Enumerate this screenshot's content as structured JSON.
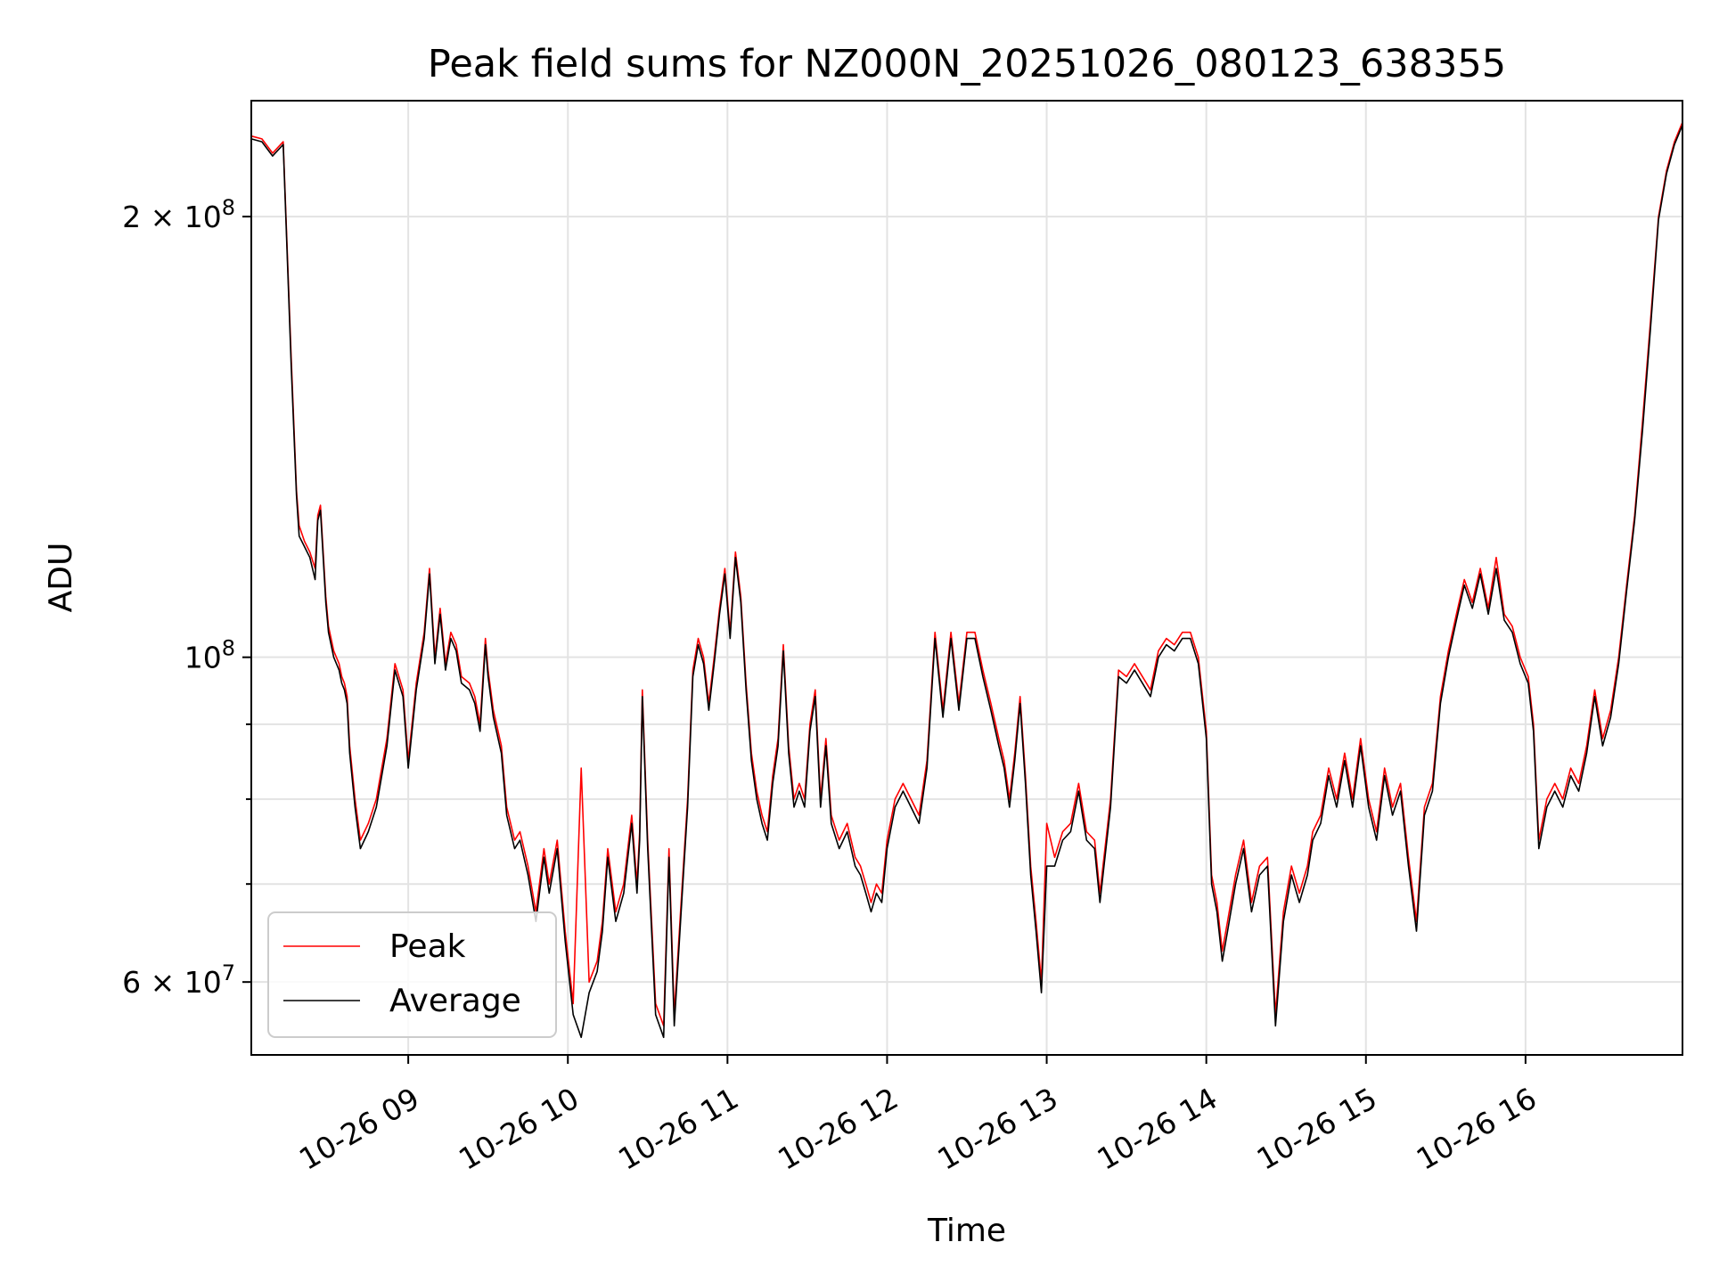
{
  "chart_data": {
    "type": "line",
    "title": "Peak field sums for NZ000N_20251026_080123_638355",
    "xlabel": "Time",
    "ylabel": "ADU",
    "yscale": "log",
    "ylim": [
      53500000,
      240000000
    ],
    "xlim": [
      "10-26 08:01",
      "10-26 16:59"
    ],
    "x_ticks": [
      "10-26 09",
      "10-26 10",
      "10-26 11",
      "10-26 12",
      "10-26 13",
      "10-26 14",
      "10-26 15",
      "10-26 16"
    ],
    "y_major_ticks": [
      {
        "value": 60000000,
        "mantissa": "6",
        "exponent": "7"
      },
      {
        "value": 100000000,
        "mantissa": "",
        "exponent": "8"
      },
      {
        "value": 200000000,
        "mantissa": "2",
        "exponent": "8"
      }
    ],
    "y_minor_ticks": [
      70000000,
      80000000,
      90000000
    ],
    "grid": true,
    "legend": {
      "position": "bottom-left",
      "entries": [
        "Peak",
        "Average"
      ]
    },
    "x": [
      "10-26 08:01",
      "10-26 08:05",
      "10-26 08:09",
      "10-26 08:13",
      "10-26 08:16",
      "10-26 08:18",
      "10-26 08:19",
      "10-26 08:21",
      "10-26 08:23",
      "10-26 08:25",
      "10-26 08:26",
      "10-26 08:27",
      "10-26 08:29",
      "10-26 08:30",
      "10-26 08:32",
      "10-26 08:34",
      "10-26 08:35",
      "10-26 08:36",
      "10-26 08:37",
      "10-26 08:38",
      "10-26 08:40",
      "10-26 08:42",
      "10-26 08:45",
      "10-26 08:48",
      "10-26 08:52",
      "10-26 08:55",
      "10-26 08:58",
      "10-26 09:00",
      "10-26 09:03",
      "10-26 09:06",
      "10-26 09:08",
      "10-26 09:10",
      "10-26 09:12",
      "10-26 09:14",
      "10-26 09:16",
      "10-26 09:18",
      "10-26 09:20",
      "10-26 09:23",
      "10-26 09:25",
      "10-26 09:27",
      "10-26 09:29",
      "10-26 09:30",
      "10-26 09:32",
      "10-26 09:35",
      "10-26 09:37",
      "10-26 09:40",
      "10-26 09:42",
      "10-26 09:45",
      "10-26 09:48",
      "10-26 09:51",
      "10-26 09:53",
      "10-26 09:56",
      "10-26 09:59",
      "10-26 10:02",
      "10-26 10:05",
      "10-26 10:08",
      "10-26 10:11",
      "10-26 10:13",
      "10-26 10:15",
      "10-26 10:18",
      "10-26 10:21",
      "10-26 10:24",
      "10-26 10:26",
      "10-26 10:27",
      "10-26 10:28",
      "10-26 10:30",
      "10-26 10:33",
      "10-26 10:36",
      "10-26 10:38",
      "10-26 10:40",
      "10-26 10:43",
      "10-26 10:45",
      "10-26 10:47",
      "10-26 10:49",
      "10-26 10:51",
      "10-26 10:53",
      "10-26 10:55",
      "10-26 10:57",
      "10-26 10:59",
      "10-26 11:01",
      "10-26 11:03",
      "10-26 11:05",
      "10-26 11:07",
      "10-26 11:09",
      "10-26 11:11",
      "10-26 11:13",
      "10-26 11:15",
      "10-26 11:17",
      "10-26 11:19",
      "10-26 11:21",
      "10-26 11:23",
      "10-26 11:25",
      "10-26 11:27",
      "10-26 11:29",
      "10-26 11:31",
      "10-26 11:33",
      "10-26 11:35",
      "10-26 11:37",
      "10-26 11:39",
      "10-26 11:42",
      "10-26 11:45",
      "10-26 11:48",
      "10-26 11:50",
      "10-26 11:52",
      "10-26 11:54",
      "10-26 11:56",
      "10-26 11:58",
      "10-26 12:00",
      "10-26 12:03",
      "10-26 12:06",
      "10-26 12:09",
      "10-26 12:12",
      "10-26 12:15",
      "10-26 12:18",
      "10-26 12:21",
      "10-26 12:24",
      "10-26 12:27",
      "10-26 12:30",
      "10-26 12:33",
      "10-26 12:36",
      "10-26 12:39",
      "10-26 12:42",
      "10-26 12:44",
      "10-26 12:46",
      "10-26 12:48",
      "10-26 12:50",
      "10-26 12:52",
      "10-26 12:54",
      "10-26 12:56",
      "10-26 12:58",
      "10-26 13:00",
      "10-26 13:03",
      "10-26 13:06",
      "10-26 13:09",
      "10-26 13:12",
      "10-26 13:15",
      "10-26 13:18",
      "10-26 13:20",
      "10-26 13:24",
      "10-26 13:27",
      "10-26 13:30",
      "10-26 13:33",
      "10-26 13:36",
      "10-26 13:39",
      "10-26 13:42",
      "10-26 13:45",
      "10-26 13:48",
      "10-26 13:51",
      "10-26 13:54",
      "10-26 13:57",
      "10-26 14:00",
      "10-26 14:02",
      "10-26 14:04",
      "10-26 14:06",
      "10-26 14:08",
      "10-26 14:11",
      "10-26 14:14",
      "10-26 14:17",
      "10-26 14:20",
      "10-26 14:23",
      "10-26 14:26",
      "10-26 14:29",
      "10-26 14:32",
      "10-26 14:35",
      "10-26 14:38",
      "10-26 14:40",
      "10-26 14:43",
      "10-26 14:46",
      "10-26 14:49",
      "10-26 14:52",
      "10-26 14:55",
      "10-26 14:58",
      "10-26 15:01",
      "10-26 15:04",
      "10-26 15:07",
      "10-26 15:10",
      "10-26 15:13",
      "10-26 15:16",
      "10-26 15:19",
      "10-26 15:22",
      "10-26 15:25",
      "10-26 15:28",
      "10-26 15:31",
      "10-26 15:34",
      "10-26 15:37",
      "10-26 15:40",
      "10-26 15:43",
      "10-26 15:46",
      "10-26 15:49",
      "10-26 15:52",
      "10-26 15:55",
      "10-26 15:58",
      "10-26 16:01",
      "10-26 16:03",
      "10-26 16:05",
      "10-26 16:08",
      "10-26 16:11",
      "10-26 16:14",
      "10-26 16:17",
      "10-26 16:20",
      "10-26 16:23",
      "10-26 16:26",
      "10-26 16:29",
      "10-26 16:32",
      "10-26 16:35",
      "10-26 16:38",
      "10-26 16:41",
      "10-26 16:44",
      "10-26 16:47",
      "10-26 16:50",
      "10-26 16:53",
      "10-26 16:56",
      "10-26 16:59"
    ],
    "series": [
      {
        "name": "Peak",
        "color": "#ff0000",
        "values": [
          227000000,
          226000000,
          221000000,
          225000000,
          160000000,
          130000000,
          123000000,
          120000000,
          118000000,
          115000000,
          125000000,
          127000000,
          110000000,
          105000000,
          101000000,
          99000000,
          97000000,
          96000000,
          94000000,
          87000000,
          80000000,
          75000000,
          77000000,
          80000000,
          88000000,
          99000000,
          95000000,
          85000000,
          96000000,
          104000000,
          115000000,
          100000000,
          108000000,
          99000000,
          104000000,
          102000000,
          97000000,
          96000000,
          94000000,
          90000000,
          103000000,
          98000000,
          92000000,
          87000000,
          79000000,
          75000000,
          76000000,
          72000000,
          67000000,
          74000000,
          70000000,
          75000000,
          65000000,
          58000000,
          84000000,
          60000000,
          62000000,
          66000000,
          74000000,
          67000000,
          70000000,
          78000000,
          70000000,
          76000000,
          95000000,
          75000000,
          58000000,
          56000000,
          74000000,
          57000000,
          70000000,
          80000000,
          98000000,
          103000000,
          100000000,
          93000000,
          100000000,
          108000000,
          115000000,
          104000000,
          118000000,
          110000000,
          96000000,
          86000000,
          81000000,
          78000000,
          76000000,
          83000000,
          88000000,
          102000000,
          87000000,
          80000000,
          82000000,
          80000000,
          90000000,
          95000000,
          80000000,
          88000000,
          78000000,
          75000000,
          77000000,
          73000000,
          72000000,
          70000000,
          68000000,
          70000000,
          69000000,
          75000000,
          80000000,
          82000000,
          80000000,
          78000000,
          85000000,
          104000000,
          92000000,
          104000000,
          93000000,
          104000000,
          104000000,
          98000000,
          93000000,
          88000000,
          85000000,
          80000000,
          86000000,
          94000000,
          83000000,
          72000000,
          66000000,
          60000000,
          77000000,
          73000000,
          76000000,
          77000000,
          82000000,
          76000000,
          75000000,
          69000000,
          80000000,
          98000000,
          97000000,
          99000000,
          97000000,
          95000000,
          101000000,
          103000000,
          102000000,
          104000000,
          104000000,
          100000000,
          89000000,
          71000000,
          68000000,
          63000000,
          66000000,
          71000000,
          75000000,
          68000000,
          72000000,
          73000000,
          57000000,
          67000000,
          72000000,
          69000000,
          72000000,
          76000000,
          78000000,
          84000000,
          80000000,
          86000000,
          80000000,
          88000000,
          80000000,
          76000000,
          84000000,
          79000000,
          82000000,
          73000000,
          66000000,
          79000000,
          82000000,
          94000000,
          101000000,
          107000000,
          113000000,
          109000000,
          115000000,
          108000000,
          117000000,
          107000000,
          105000000,
          100000000,
          97000000,
          90000000,
          75000000,
          80000000,
          82000000,
          80000000,
          84000000,
          82000000,
          87000000,
          95000000,
          88000000,
          92000000,
          100000000,
          112000000,
          125000000,
          145000000,
          170000000,
          200000000,
          215000000,
          225000000,
          232000000
        ]
      },
      {
        "name": "Average",
        "color": "#000000",
        "values": [
          226000000,
          225000000,
          220000000,
          224000000,
          158000000,
          129000000,
          121000000,
          119000000,
          117000000,
          113000000,
          124000000,
          126000000,
          109000000,
          104000000,
          100000000,
          98000000,
          96000000,
          95000000,
          93000000,
          86000000,
          79000000,
          74000000,
          76000000,
          79000000,
          87000000,
          98000000,
          94000000,
          84000000,
          95000000,
          103000000,
          114000000,
          99000000,
          107000000,
          98000000,
          103000000,
          101000000,
          96000000,
          95000000,
          93000000,
          89000000,
          102000000,
          97000000,
          91000000,
          86000000,
          78000000,
          74000000,
          75000000,
          71000000,
          66000000,
          73000000,
          69000000,
          74000000,
          64000000,
          57000000,
          55000000,
          59000000,
          61000000,
          65000000,
          73000000,
          66000000,
          69000000,
          77000000,
          69000000,
          75000000,
          94000000,
          74000000,
          57000000,
          55000000,
          73000000,
          56000000,
          69000000,
          79000000,
          97000000,
          102000000,
          99000000,
          92000000,
          99000000,
          107000000,
          114000000,
          103000000,
          117000000,
          109000000,
          95000000,
          85000000,
          80000000,
          77000000,
          75000000,
          82000000,
          87000000,
          101000000,
          86000000,
          79000000,
          81000000,
          79000000,
          89000000,
          94000000,
          79000000,
          87000000,
          77000000,
          74000000,
          76000000,
          72000000,
          71000000,
          69000000,
          67000000,
          69000000,
          68000000,
          74000000,
          79000000,
          81000000,
          79000000,
          77000000,
          84000000,
          103000000,
          91000000,
          103000000,
          92000000,
          103000000,
          103000000,
          97000000,
          92000000,
          87000000,
          84000000,
          79000000,
          85000000,
          93000000,
          82000000,
          71000000,
          65000000,
          59000000,
          72000000,
          72000000,
          75000000,
          76000000,
          81000000,
          75000000,
          74000000,
          68000000,
          79000000,
          97000000,
          96000000,
          98000000,
          96000000,
          94000000,
          100000000,
          102000000,
          101000000,
          103000000,
          103000000,
          99000000,
          88000000,
          70000000,
          67000000,
          62000000,
          65000000,
          70000000,
          74000000,
          67000000,
          71000000,
          72000000,
          56000000,
          66000000,
          71000000,
          68000000,
          71000000,
          75000000,
          77000000,
          83000000,
          79000000,
          85000000,
          79000000,
          87000000,
          79000000,
          75000000,
          83000000,
          78000000,
          81000000,
          72000000,
          65000000,
          78000000,
          81000000,
          93000000,
          100000000,
          106000000,
          112000000,
          108000000,
          114000000,
          107000000,
          115000000,
          106000000,
          104000000,
          99000000,
          96000000,
          89000000,
          74000000,
          79000000,
          81000000,
          79000000,
          83000000,
          81000000,
          86000000,
          94000000,
          87000000,
          91000000,
          99000000,
          111000000,
          124000000,
          143000000,
          168000000,
          199000000,
          214000000,
          224000000,
          231000000
        ]
      }
    ]
  }
}
